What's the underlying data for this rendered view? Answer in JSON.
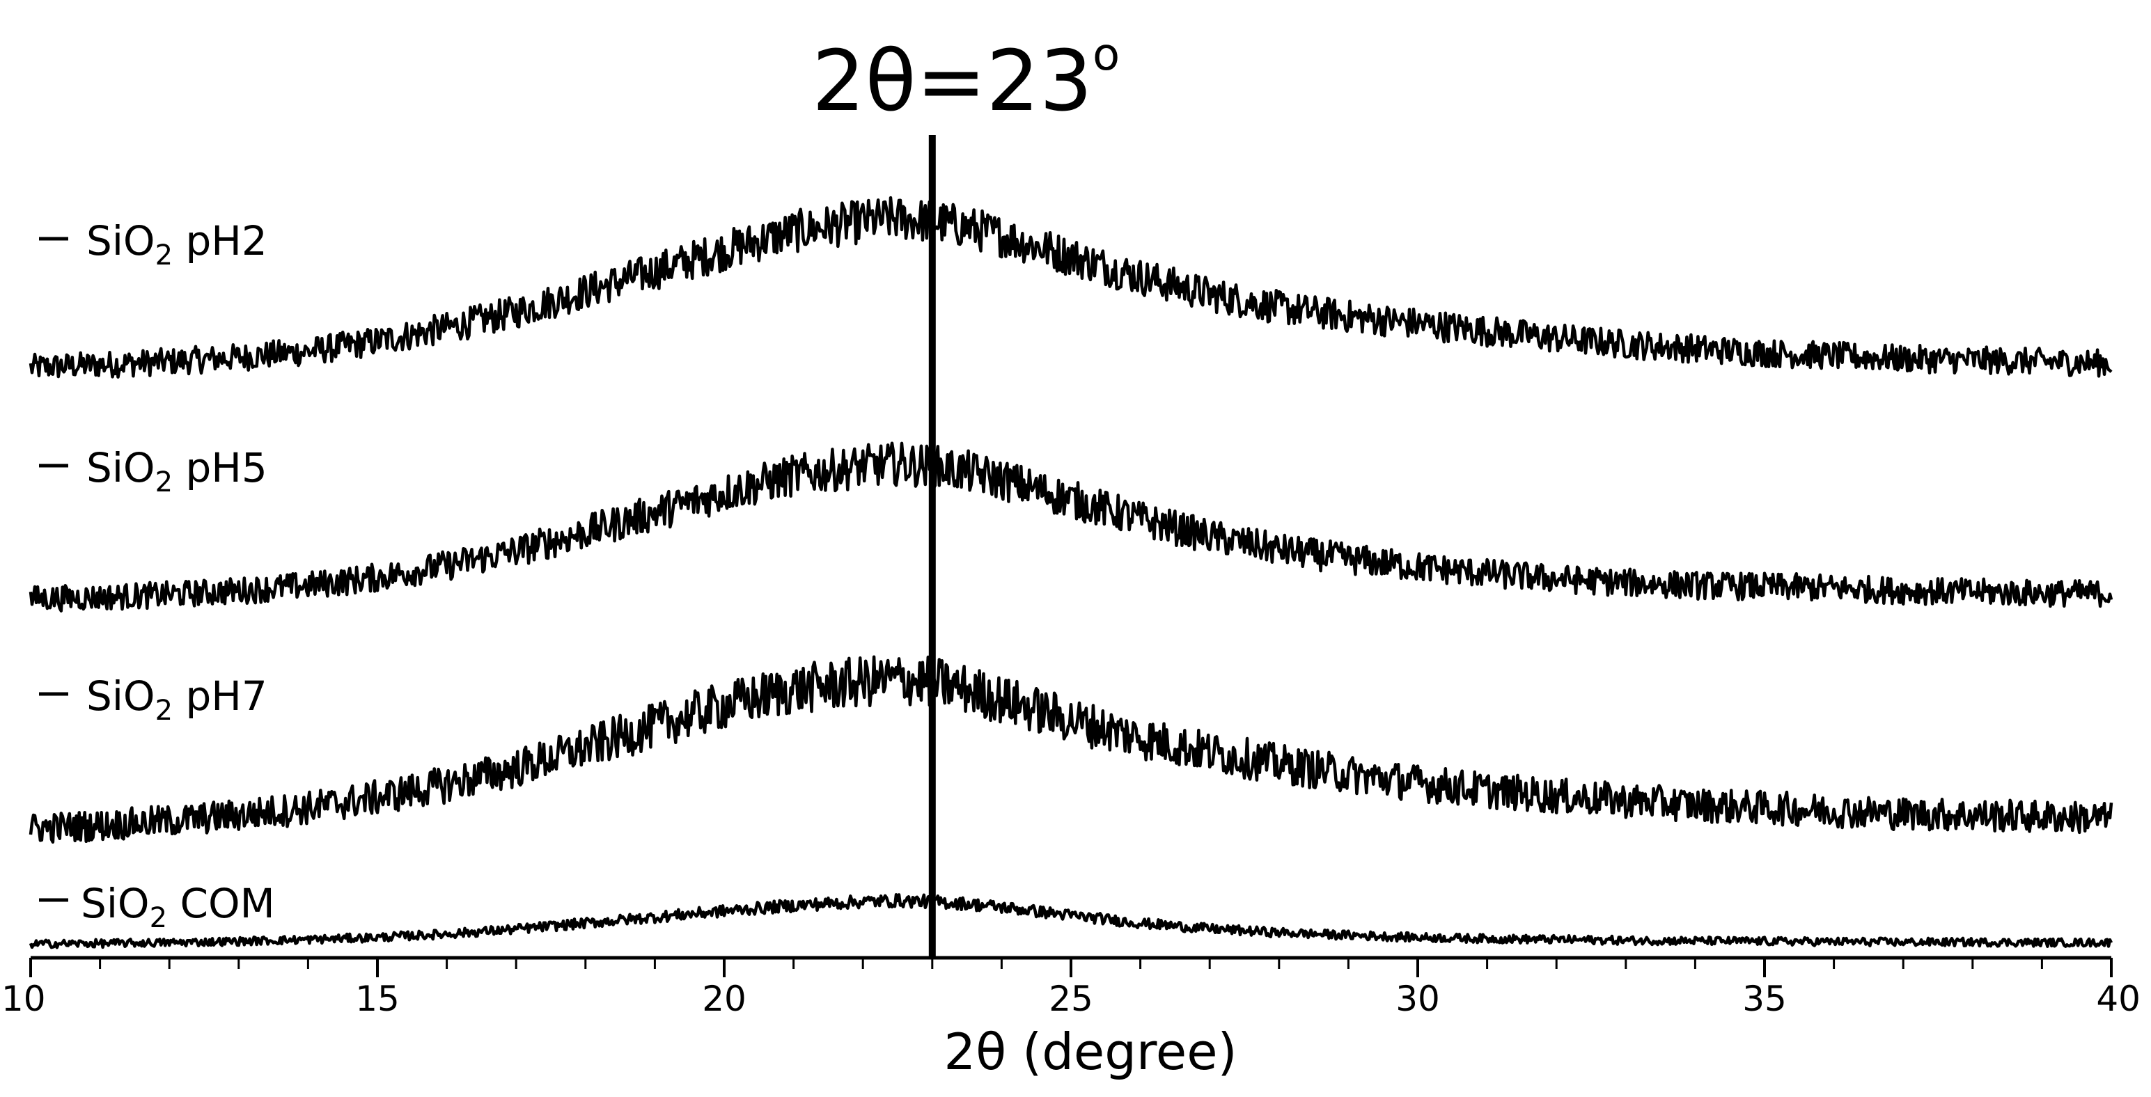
{
  "chart_data": {
    "type": "line",
    "xlabel": "2θ (degree)",
    "ylabel": "",
    "xlim": [
      10,
      40
    ],
    "x_ticks": [
      10,
      15,
      20,
      25,
      30,
      35,
      40
    ],
    "grid": false,
    "legend_placement": "left, inline with each trace",
    "annotation": {
      "text": "2θ=23",
      "sup": "o",
      "x": 23
    },
    "series": [
      {
        "name": "SiO2 pH2",
        "label_main": "SiO",
        "label_sub": "2",
        "label_tail": " pH2",
        "x": [
          10,
          11,
          12,
          13,
          14,
          15,
          16,
          17,
          18,
          19,
          20,
          21,
          22,
          22.5,
          23,
          23.5,
          24,
          25,
          26,
          27,
          28,
          29,
          30,
          31,
          32,
          33,
          34,
          35,
          36,
          37,
          38,
          39,
          40
        ],
        "y": [
          0,
          0.02,
          0.04,
          0.07,
          0.11,
          0.18,
          0.27,
          0.38,
          0.52,
          0.66,
          0.8,
          0.93,
          1.0,
          1.02,
          1.0,
          0.96,
          0.9,
          0.76,
          0.62,
          0.5,
          0.41,
          0.35,
          0.3,
          0.25,
          0.2,
          0.16,
          0.13,
          0.1,
          0.08,
          0.06,
          0.05,
          0.04,
          0.03
        ],
        "noise": 0.12
      },
      {
        "name": "SiO2 pH5",
        "label_main": "SiO",
        "label_sub": "2",
        "label_tail": " pH5",
        "x": [
          10,
          11,
          12,
          13,
          14,
          15,
          16,
          17,
          18,
          19,
          20,
          21,
          22,
          22.5,
          23,
          23.5,
          24,
          25,
          26,
          27,
          28,
          29,
          30,
          31,
          32,
          33,
          34,
          35,
          36,
          37,
          38,
          39,
          40
        ],
        "y": [
          0,
          0.01,
          0.03,
          0.06,
          0.1,
          0.16,
          0.25,
          0.36,
          0.5,
          0.65,
          0.8,
          0.93,
          1.0,
          1.02,
          1.0,
          0.96,
          0.9,
          0.75,
          0.6,
          0.47,
          0.37,
          0.3,
          0.24,
          0.19,
          0.15,
          0.12,
          0.1,
          0.09,
          0.08,
          0.06,
          0.05,
          0.04,
          0.04
        ],
        "noise": 0.13
      },
      {
        "name": "SiO2 pH7",
        "label_main": "SiO",
        "label_sub": "2",
        "label_tail": " pH7",
        "x": [
          10,
          11,
          12,
          13,
          14,
          15,
          16,
          17,
          18,
          19,
          20,
          21,
          22,
          22.5,
          23,
          23.5,
          24,
          25,
          26,
          27,
          28,
          29,
          30,
          31,
          32,
          33,
          34,
          35,
          36,
          37,
          38,
          39,
          40
        ],
        "y": [
          0,
          0.02,
          0.05,
          0.09,
          0.14,
          0.21,
          0.3,
          0.41,
          0.55,
          0.7,
          0.84,
          0.95,
          1.0,
          1.02,
          1.0,
          0.95,
          0.88,
          0.74,
          0.62,
          0.52,
          0.44,
          0.37,
          0.31,
          0.26,
          0.22,
          0.19,
          0.16,
          0.14,
          0.12,
          0.1,
          0.09,
          0.08,
          0.07
        ],
        "noise": 0.14
      },
      {
        "name": "SiO2 COM",
        "label_main": "SiO",
        "label_sub": "2",
        "label_tail": " COM",
        "x": [
          10,
          11,
          12,
          13,
          14,
          15,
          16,
          17,
          18,
          19,
          20,
          21,
          22,
          22.5,
          23,
          23.5,
          24,
          25,
          26,
          27,
          28,
          29,
          30,
          31,
          32,
          33,
          34,
          35,
          36,
          37,
          38,
          39,
          40
        ],
        "y": [
          0,
          0.01,
          0.03,
          0.06,
          0.1,
          0.15,
          0.23,
          0.34,
          0.48,
          0.62,
          0.76,
          0.89,
          0.98,
          1.0,
          0.98,
          0.93,
          0.85,
          0.66,
          0.48,
          0.35,
          0.26,
          0.2,
          0.15,
          0.12,
          0.1,
          0.08,
          0.07,
          0.06,
          0.05,
          0.04,
          0.04,
          0.03,
          0.03
        ],
        "noise": 0.12
      }
    ]
  }
}
